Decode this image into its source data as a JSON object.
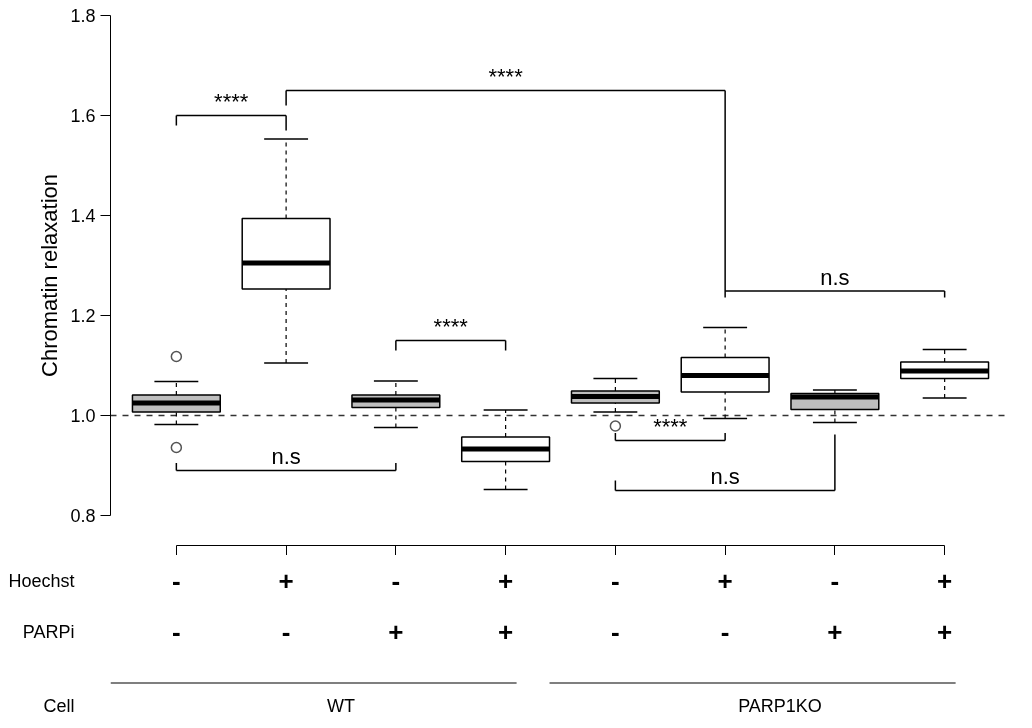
{
  "chart_data": {
    "type": "box",
    "ylabel": "Chromatin relaxation",
    "categories": [
      null,
      null,
      null,
      null,
      null,
      null,
      null,
      null
    ],
    "colors": [
      "#bebebe",
      "#ffffff",
      "#bebebe",
      "#ffffff",
      "#bebebe",
      "#ffffff",
      "#bebebe",
      "#ffffff"
    ],
    "boxes": [
      {
        "low": 0.982,
        "q1": 1.007,
        "median": 1.025,
        "q3": 1.041,
        "high": 1.068,
        "outliers": [
          1.118,
          0.936
        ]
      },
      {
        "low": 1.105,
        "q1": 1.253,
        "median": 1.305,
        "q3": 1.394,
        "high": 1.553
      },
      {
        "low": 0.976,
        "q1": 1.016,
        "median": 1.031,
        "q3": 1.041,
        "high": 1.069
      },
      {
        "low": 0.852,
        "q1": 0.908,
        "median": 0.933,
        "q3": 0.957,
        "high": 1.011
      },
      {
        "low": 1.007,
        "q1": 1.025,
        "median": 1.038,
        "q3": 1.049,
        "high": 1.074,
        "outliers": [
          0.979
        ]
      },
      {
        "low": 0.994,
        "q1": 1.047,
        "median": 1.08,
        "q3": 1.116,
        "high": 1.176
      },
      {
        "low": 0.986,
        "q1": 1.012,
        "median": 1.037,
        "q3": 1.044,
        "high": 1.051
      },
      {
        "low": 1.035,
        "q1": 1.074,
        "median": 1.089,
        "q3": 1.107,
        "high": 1.132
      }
    ],
    "ylim": [
      0.8,
      1.8
    ],
    "yticks": [
      0.8,
      {
        "value": 1.0,
        "label": "1.0"
      },
      1.2,
      1.4,
      1.6,
      1.8
    ],
    "ref_lines": [
      {
        "axis": "y",
        "value": 1.0,
        "line_style": "dashed",
        "color": "#333333"
      }
    ],
    "tick_labels": "y",
    "annotations": [
      "****",
      "****",
      "****",
      "n.s",
      "n.s",
      "****",
      "n.s",
      "Hoechst",
      "PARPi",
      "Cell",
      "WT",
      "PARP1KO",
      "-",
      "+",
      "-",
      "+",
      "-",
      "+",
      "-",
      "+",
      "-",
      "-",
      "+",
      "+",
      "-",
      "-",
      "+",
      "+"
    ]
  }
}
